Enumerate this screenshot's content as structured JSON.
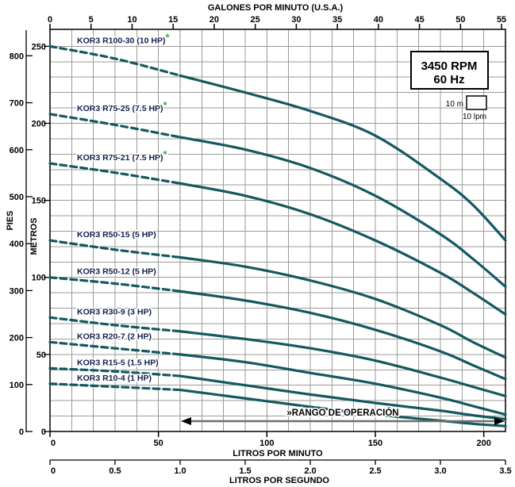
{
  "chart_data": {
    "type": "line",
    "rpm_box": {
      "line1": "3450 RPM",
      "line2": "60 Hz"
    },
    "grid_cell_legend": {
      "height_label": "10 m",
      "flow_label": "10 lpm"
    },
    "operating_range": {
      "label": "»RANGO DE OPERACIÓN",
      "start_lpm": 60,
      "end_lpm": 210
    },
    "axes": {
      "top": {
        "title": "GALONES POR MINUTO (U.S.A.)",
        "ticks": [
          "0",
          "5",
          "10",
          "15",
          "20",
          "25",
          "30",
          "35",
          "40",
          "45",
          "50",
          "55"
        ]
      },
      "bottom": {
        "title": "LITROS POR MINUTO",
        "ticks": [
          "0",
          "50",
          "100",
          "150",
          "200"
        ]
      },
      "bottom2": {
        "title": "LITROS POR SEGUNDO",
        "ticks": [
          "0",
          "0.5",
          "1.0",
          "1.5",
          "2.0",
          "2.5",
          "3.0",
          "3.5"
        ]
      },
      "left_outer": {
        "title": "PIES",
        "ticks": [
          "0",
          "100",
          "200",
          "300",
          "400",
          "500",
          "600",
          "700",
          "800"
        ]
      },
      "left_inner": {
        "title": "METROS",
        "ticks": [
          "0",
          "50",
          "100",
          "150",
          "200",
          "250"
        ]
      }
    },
    "x_max_lpm": 210,
    "y_max_m": 261,
    "grid_step": {
      "x_lpm": 10,
      "y_m": 10
    },
    "dashed_segment_end_lpm": 60,
    "series": [
      {
        "name": "KOR3 R100-30 (10 HP)",
        "asterisk": true,
        "points_lpm_m": [
          [
            0,
            250
          ],
          [
            30,
            242
          ],
          [
            60,
            231
          ],
          [
            90,
            220
          ],
          [
            120,
            208
          ],
          [
            150,
            192
          ],
          [
            180,
            164
          ],
          [
            195,
            147
          ],
          [
            210,
            124
          ]
        ]
      },
      {
        "name": "KOR3 R75-25 (7.5 HP)",
        "asterisk": true,
        "points_lpm_m": [
          [
            0,
            206
          ],
          [
            30,
            199
          ],
          [
            60,
            191
          ],
          [
            90,
            183
          ],
          [
            120,
            171
          ],
          [
            150,
            153
          ],
          [
            180,
            128
          ],
          [
            195,
            112
          ],
          [
            210,
            94
          ]
        ]
      },
      {
        "name": "KOR3 R75-21 (7.5 HP)",
        "asterisk": true,
        "points_lpm_m": [
          [
            0,
            174
          ],
          [
            30,
            168
          ],
          [
            60,
            161
          ],
          [
            90,
            153
          ],
          [
            120,
            141
          ],
          [
            150,
            124
          ],
          [
            180,
            103
          ],
          [
            195,
            90
          ],
          [
            210,
            76
          ]
        ]
      },
      {
        "name": "KOR3 R50-15 (5 HP)",
        "asterisk": false,
        "points_lpm_m": [
          [
            0,
            124
          ],
          [
            30,
            118
          ],
          [
            60,
            113
          ],
          [
            90,
            107
          ],
          [
            120,
            98
          ],
          [
            150,
            86
          ],
          [
            180,
            69
          ],
          [
            195,
            58
          ],
          [
            210,
            48
          ]
        ]
      },
      {
        "name": "KOR3 R50-12 (5 HP)",
        "asterisk": false,
        "points_lpm_m": [
          [
            0,
            100
          ],
          [
            30,
            96
          ],
          [
            60,
            91
          ],
          [
            90,
            85
          ],
          [
            120,
            77
          ],
          [
            150,
            66
          ],
          [
            180,
            52
          ],
          [
            195,
            43
          ],
          [
            210,
            34
          ]
        ]
      },
      {
        "name": "KOR3 R30-9 (3 HP)",
        "asterisk": false,
        "points_lpm_m": [
          [
            0,
            74
          ],
          [
            30,
            69
          ],
          [
            60,
            65
          ],
          [
            90,
            60
          ],
          [
            120,
            54
          ],
          [
            150,
            46
          ],
          [
            180,
            35
          ],
          [
            195,
            29
          ],
          [
            210,
            23
          ]
        ]
      },
      {
        "name": "KOR3 R20-7 (2 HP)",
        "asterisk": false,
        "points_lpm_m": [
          [
            0,
            58
          ],
          [
            30,
            54
          ],
          [
            60,
            50
          ],
          [
            90,
            45
          ],
          [
            120,
            38
          ],
          [
            150,
            31
          ],
          [
            180,
            22
          ],
          [
            195,
            16.5
          ],
          [
            210,
            11
          ]
        ]
      },
      {
        "name": "KOR3 R15-5 (1.5 HP)",
        "asterisk": false,
        "points_lpm_m": [
          [
            0,
            41
          ],
          [
            30,
            39
          ],
          [
            60,
            36
          ],
          [
            90,
            30
          ],
          [
            120,
            24
          ],
          [
            150,
            18.5
          ],
          [
            180,
            13.5
          ],
          [
            195,
            10.5
          ],
          [
            210,
            8
          ]
        ]
      },
      {
        "name": "KOR3 R10-4 (1 HP)",
        "asterisk": false,
        "points_lpm_m": [
          [
            0,
            31
          ],
          [
            30,
            29
          ],
          [
            60,
            27
          ],
          [
            90,
            21.5
          ],
          [
            120,
            16
          ],
          [
            150,
            11
          ],
          [
            180,
            7
          ],
          [
            195,
            5
          ],
          [
            210,
            3.5
          ]
        ]
      }
    ],
    "colors": {
      "curve": "#14595f",
      "curve_label": "#14204d",
      "grid": "#9b9b9b",
      "axis": "#000000",
      "asterisk": "#2fae4a",
      "range_arrow_line": "#6e6e6e",
      "range_arrow_head": "#000000",
      "dashed_boundary": "#999999"
    }
  }
}
